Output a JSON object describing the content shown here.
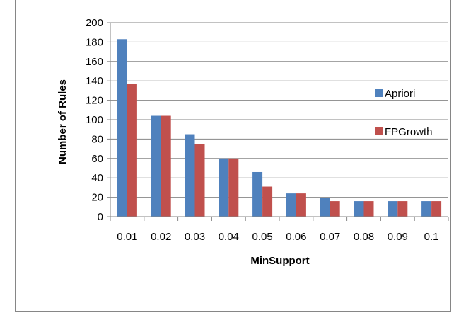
{
  "chart_data": {
    "type": "bar",
    "title": "",
    "xlabel": "MinSupport",
    "ylabel": "Number of Rules",
    "categories": [
      "0.01",
      "0.02",
      "0.03",
      "0.04",
      "0.05",
      "0.06",
      "0.07",
      "0.08",
      "0.09",
      "0.1"
    ],
    "series": [
      {
        "name": "Apriori",
        "color": "#4F81BD",
        "values": [
          183,
          104,
          85,
          60,
          46,
          24,
          19,
          16,
          16,
          16
        ]
      },
      {
        "name": "FPGrowth",
        "color": "#C0504D",
        "values": [
          137,
          104,
          75,
          60,
          31,
          24,
          16,
          16,
          16,
          16
        ]
      }
    ],
    "ylim": [
      0,
      200
    ],
    "yticks": [
      0,
      20,
      40,
      60,
      80,
      100,
      120,
      140,
      160,
      180,
      200
    ],
    "grid": true,
    "legend_position": "right"
  }
}
